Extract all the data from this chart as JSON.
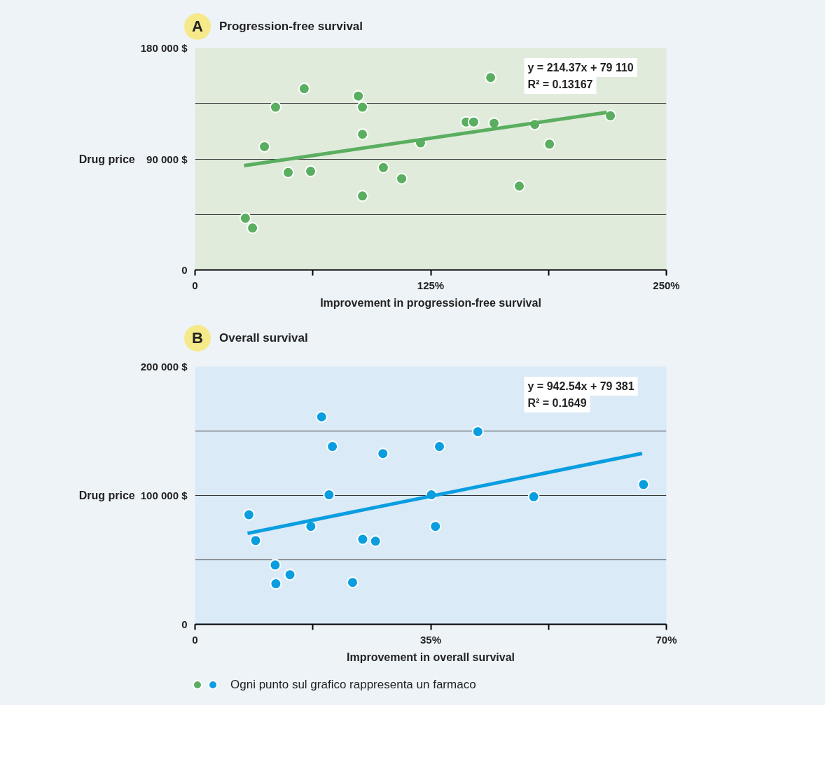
{
  "chart_data": [
    {
      "type": "scatter",
      "title": "Progression-free survival",
      "xlabel": "Improvement in progression-free survival",
      "ylabel": "Drug price",
      "annotations": [
        "A",
        "y = 214.37x + 79 110",
        "R² = 0.13167"
      ],
      "xlim": [
        0,
        250
      ],
      "xticks": [
        {
          "value": 0,
          "label": "0"
        },
        {
          "value": 62.5,
          "label": null
        },
        {
          "value": 125,
          "label": "125%"
        },
        {
          "value": 187.5,
          "label": null
        },
        {
          "value": 250,
          "label": "250%"
        }
      ],
      "ylim": [
        0,
        180000
      ],
      "yticks": [
        {
          "value": 0,
          "label": "0"
        },
        {
          "value": 45000,
          "label": null
        },
        {
          "value": 90000,
          "label": "90 000 $"
        },
        {
          "value": 135000,
          "label": null
        },
        {
          "value": 180000,
          "label": "180 000 $"
        }
      ],
      "grid": "y",
      "marker": "circle",
      "series": [
        {
          "color": "#5aae5f",
          "x": [
            26.7,
            30.5,
            36.8,
            42.7,
            49.4,
            57.9,
            61.3,
            86.6,
            88.8,
            88.8,
            88.8,
            99.9,
            109.6,
            119.6,
            143.8,
            147.8,
            156.8,
            158.6,
            172.0,
            180.2,
            188.0,
            220.3
          ],
          "values": [
            42000,
            34000,
            100000,
            132000,
            79000,
            147000,
            80000,
            141000,
            132000,
            110000,
            60000,
            83000,
            74000,
            103000,
            120000,
            120000,
            156000,
            119000,
            68000,
            118000,
            102000,
            125000
          ]
        },
        {
          "type": "line",
          "marker": "none",
          "color": "#5aae5f",
          "x": [
            26.0,
            218.4
          ],
          "values": [
            84600,
            127800
          ]
        }
      ]
    },
    {
      "type": "scatter",
      "title": "Overall survival",
      "xlabel": "Improvement in overall survival",
      "ylabel": "Drug price",
      "annotations": [
        "B",
        "y = 942.54x + 79 381",
        "R² = 0.1649",
        "Ogni punto sul grafico rappresenta un farmaco"
      ],
      "xlim": [
        0,
        70
      ],
      "xticks": [
        {
          "value": 0,
          "label": "0"
        },
        {
          "value": 17.5,
          "label": null
        },
        {
          "value": 35,
          "label": "35%"
        },
        {
          "value": 52.5,
          "label": null
        },
        {
          "value": 70,
          "label": "70%"
        }
      ],
      "ylim": [
        0,
        200000
      ],
      "yticks": [
        {
          "value": 0,
          "label": "0"
        },
        {
          "value": 50000,
          "label": null
        },
        {
          "value": 100000,
          "label": "100 000 $"
        },
        {
          "value": 150000,
          "label": null
        },
        {
          "value": 200000,
          "label": "200 000 $"
        }
      ],
      "grid": "y",
      "marker": "circle",
      "series": [
        {
          "color": "#0a9ee0",
          "x": [
            8.0,
            9.0,
            11.9,
            12.0,
            14.1,
            17.2,
            18.8,
            19.9,
            20.4,
            23.4,
            24.9,
            26.8,
            27.9,
            35.1,
            35.7,
            36.3,
            42.0,
            50.3,
            66.6
          ],
          "values": [
            85000,
            65000,
            46000,
            31500,
            38500,
            76000,
            161000,
            100500,
            138000,
            32500,
            66000,
            64500,
            132500,
            100500,
            76000,
            138000,
            149500,
            99000,
            108500
          ]
        },
        {
          "type": "line",
          "marker": "none",
          "color": "#0a9ee0",
          "x": [
            7.8,
            66.4
          ],
          "values": [
            70600,
            132600
          ]
        }
      ]
    }
  ]
}
